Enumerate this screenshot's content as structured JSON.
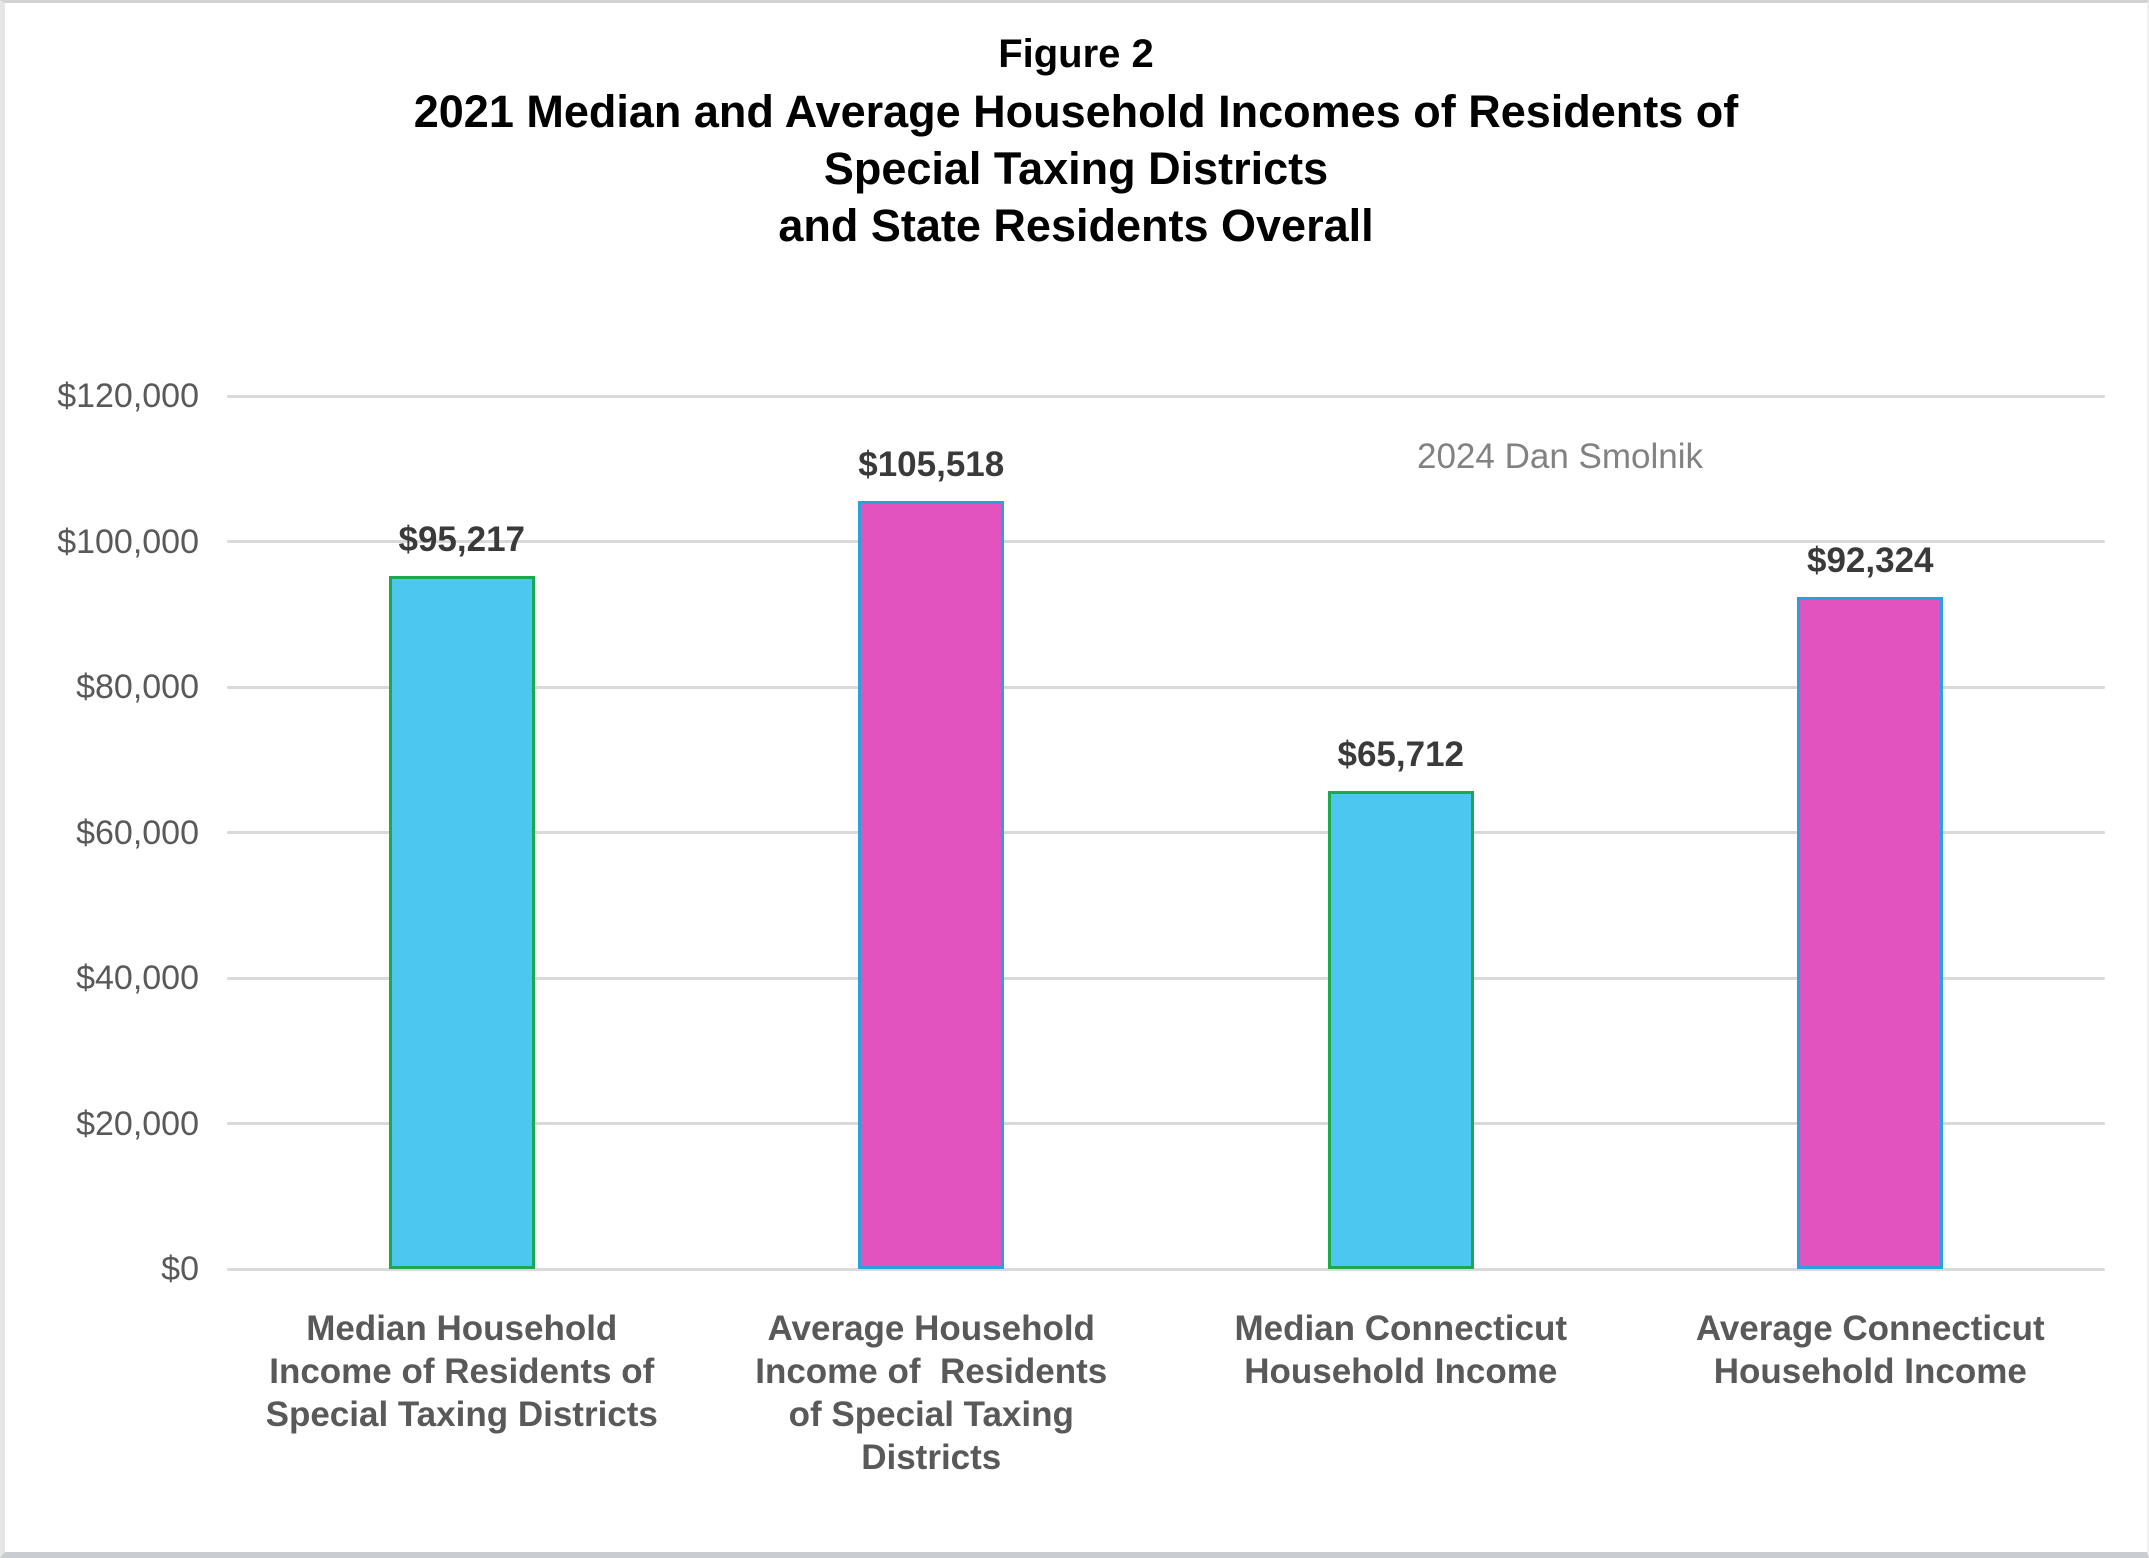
{
  "page": {
    "figure_label": "Figure 2",
    "title_lines": [
      "2021 Median and Average Household Incomes of Residents of",
      "Special Taxing Districts",
      "and State Residents Overall"
    ],
    "watermark": "2024 Dan Smolnik"
  },
  "chart_data": {
    "type": "bar",
    "title": "Figure 2 — 2021 Median and Average Household Incomes of Residents of Special Taxing Districts and State Residents Overall",
    "categories": [
      "Median Household Income of Residents of Special Taxing Districts",
      "Average Household Income of Residents of Special Taxing Districts",
      "Median Connecticut Household Income",
      "Average Connecticut Household Income"
    ],
    "category_label_lines": [
      [
        "Median Household",
        "Income of Residents of",
        "Special Taxing Districts"
      ],
      [
        "Average Household",
        "Income of  Residents",
        "of Special Taxing",
        "Districts"
      ],
      [
        "Median Connecticut",
        "Household Income"
      ],
      [
        "Average Connecticut",
        "Household Income"
      ]
    ],
    "values": [
      95217,
      105518,
      65712,
      92324
    ],
    "data_labels": [
      "$95,217",
      "$105,518",
      "$65,712",
      "$92,324"
    ],
    "bar_styles": [
      {
        "fill": "#4cc7ee",
        "border": "#1ea84e"
      },
      {
        "fill": "#e253c0",
        "border": "#2aa0e0"
      },
      {
        "fill": "#4cc7ee",
        "border": "#1ea84e"
      },
      {
        "fill": "#e253c0",
        "border": "#2aa0e0"
      }
    ],
    "xlabel": "",
    "ylabel": "",
    "ylim": [
      0,
      120000
    ],
    "yticks": {
      "values": [
        120000,
        100000,
        80000,
        60000,
        40000,
        20000,
        0
      ],
      "labels": [
        "$120,000",
        "$100,000",
        "$80,000",
        "$60,000",
        "$40,000",
        "$20,000",
        "$0"
      ]
    },
    "grid": true,
    "legend_position": "none",
    "annotation": "2024 Dan Smolnik"
  },
  "colors": {
    "grid": "#d9d9d9",
    "axis_text": "#595959",
    "data_label_text": "#3a3a3a",
    "watermark_text": "#828282",
    "background": "#ffffff"
  }
}
